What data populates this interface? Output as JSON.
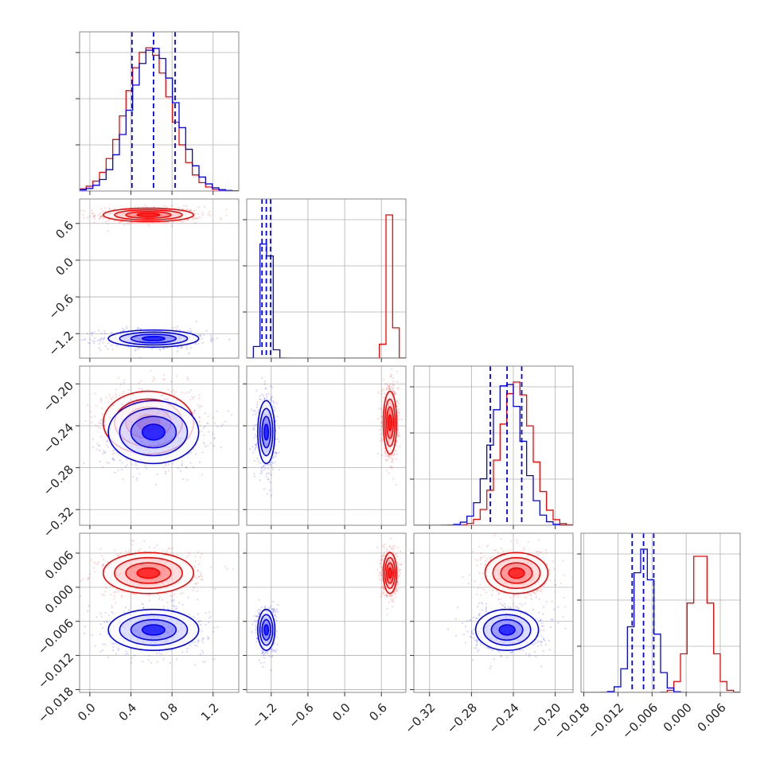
{
  "chart_data": {
    "type": "corner",
    "n_params": 4,
    "colors": {
      "model_a": "#ff0000",
      "model_b": "#0000ff",
      "quantile_lines": "#0000ff",
      "frame": "#888888",
      "grid": "#b0b0b0"
    },
    "grid": true,
    "tick_labels": {
      "p0": [
        "0.0",
        "0.4",
        "0.8",
        "1.2"
      ],
      "p1": [
        "−1.2",
        "−0.6",
        "0.0",
        "0.6"
      ],
      "p2": [
        "−0.32",
        "−0.28",
        "−0.24",
        "−0.20"
      ],
      "p3": [
        "−0.018",
        "−0.012",
        "−0.006",
        "0.000",
        "0.006"
      ]
    },
    "parameters": [
      {
        "key": "p0",
        "range": [
          -0.1,
          1.45
        ],
        "ticks": [
          0.0,
          0.4,
          0.8,
          1.2
        ],
        "minor_ticks": [
          0.0,
          0.2,
          0.4,
          0.6,
          0.8,
          1.0,
          1.2,
          1.4
        ]
      },
      {
        "key": "p1",
        "range": [
          -1.6,
          1.0
        ],
        "ticks": [
          -1.2,
          -0.6,
          0.0,
          0.6
        ]
      },
      {
        "key": "p2",
        "range": [
          -0.335,
          -0.183
        ],
        "ticks": [
          -0.32,
          -0.28,
          -0.24,
          -0.2
        ]
      },
      {
        "key": "p3",
        "range": [
          -0.0185,
          0.0095
        ],
        "ticks": [
          -0.018,
          -0.012,
          -0.006,
          0.0,
          0.006
        ]
      }
    ],
    "series": [
      {
        "color_key": "model_a",
        "mean": [
          0.57,
          0.74,
          -0.237,
          0.0025
        ],
        "std": [
          0.22,
          0.055,
          0.015,
          0.0018
        ]
      },
      {
        "color_key": "model_b",
        "mean": [
          0.62,
          -1.28,
          -0.246,
          -0.0075
        ],
        "std": [
          0.22,
          0.07,
          0.015,
          0.0018
        ]
      }
    ],
    "quantiles": {
      "p0": [
        0.41,
        0.62,
        0.83
      ],
      "p1": [
        -1.35,
        -1.28,
        -1.21
      ],
      "p2": [
        -0.262,
        -0.246,
        -0.232
      ],
      "p3": [
        -0.0095,
        -0.0075,
        -0.0057
      ]
    },
    "contour_levels_sigma": [
      0.5,
      1.0,
      1.5,
      2.0
    ],
    "sample_points_per_panel": 600
  }
}
